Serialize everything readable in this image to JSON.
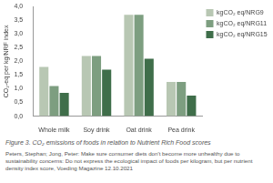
{
  "chart_data": {
    "type": "bar",
    "y_label": "CO₂-eq per kg/NRF index",
    "categories": [
      "Whole milk",
      "Soy drink",
      "Oat drink",
      "Pea drink"
    ],
    "series": [
      {
        "name": "kgCO₂ eq/NRG9",
        "color": "#b8c7b3",
        "values": [
          1.8,
          2.2,
          3.7,
          1.25
        ]
      },
      {
        "name": "kgCO₂ eq/NRG11",
        "color": "#7d9e80",
        "values": [
          1.1,
          2.2,
          3.7,
          1.25
        ]
      },
      {
        "name": "kgCO₂ eq/NRG15",
        "color": "#3f6e4a",
        "values": [
          0.85,
          1.7,
          2.1,
          0.75
        ]
      }
    ],
    "ylim": [
      0,
      4
    ],
    "yticks": [
      {
        "value": 0,
        "label": "0,0"
      },
      {
        "value": 0.5,
        "label": "0,5"
      },
      {
        "value": 1,
        "label": "1,0"
      },
      {
        "value": 1.5,
        "label": "1,5"
      },
      {
        "value": 2,
        "label": "2,0"
      },
      {
        "value": 2.5,
        "label": "2,5"
      },
      {
        "value": 3,
        "label": "3,0"
      },
      {
        "value": 3.5,
        "label": "3,5"
      },
      {
        "value": 4,
        "label": "4,0"
      }
    ],
    "grid": false,
    "legend": "right",
    "caption": "Figure 3. CO₂ emissions of foods in relation to Nutrient Rich Food scores",
    "source": "Peters, Stephan; Jong, Peter: Make sure consumer diets don't become more unhealthy due to sustainability concerns: Do not express the ecological impact of foods per kilogram, but per nutrient density index score, Voeding Magazine 12.10.2021"
  }
}
